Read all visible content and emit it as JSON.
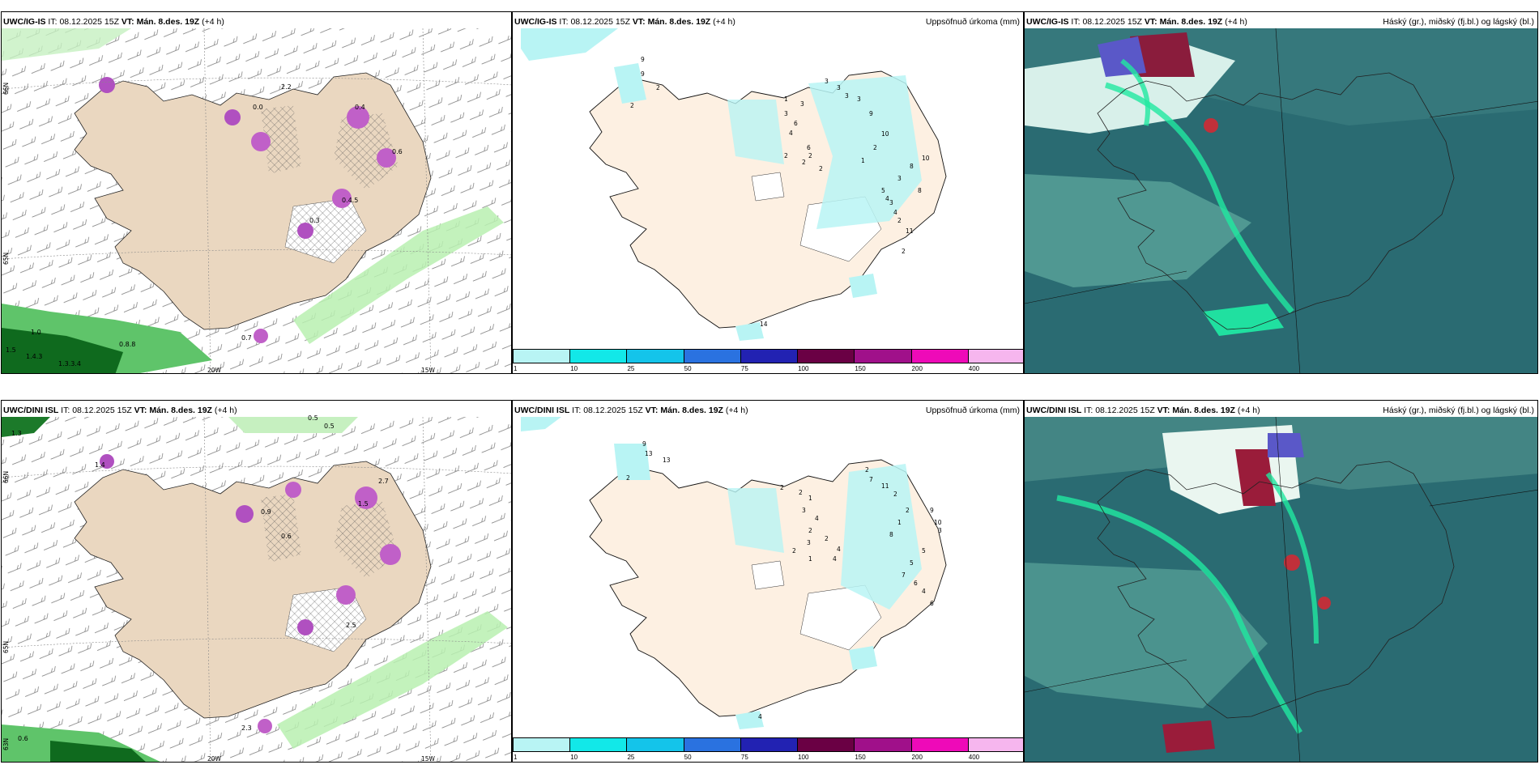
{
  "rows": [
    {
      "model": "UWC/IG-IS",
      "it_label": "IT:",
      "it_value": "08.12.2025 15Z",
      "vt_label": "VT:",
      "vt_value": "Mán. 8.des. 19Z",
      "lead": "(+4 h)",
      "precip_title": "Uppsöfnuð úrkoma (mm)",
      "cloud_title": "Háský (gr.), miðský (fj.bl.) og lágský (bl.)",
      "lat_labels": [
        "66N",
        "65N"
      ],
      "lon_labels": [
        "20W",
        "15W"
      ],
      "sea_values": [
        "1.0",
        "0.8.8",
        "1.5",
        "1.4.3",
        "1.3.3.4"
      ],
      "land_values": [
        "0.0",
        "2.2",
        "0.4",
        "0.6",
        "0.4.5",
        "0.3",
        "0.7"
      ],
      "precip_values": [
        "9",
        "9",
        "2",
        "2",
        "1",
        "3",
        "3",
        "6",
        "4",
        "6",
        "2",
        "2",
        "2",
        "2",
        "3",
        "3",
        "3",
        "3",
        "9",
        "10",
        "2",
        "1",
        "3",
        "8",
        "10",
        "5",
        "4",
        "3",
        "4",
        "2",
        "8",
        "11",
        "2",
        "14"
      ]
    },
    {
      "model": "UWC/DINI ISL",
      "it_label": "IT:",
      "it_value": "08.12.2025 15Z",
      "vt_label": "VT:",
      "vt_value": "Mán. 8.des. 19Z",
      "lead": "(+4 h)",
      "precip_title": "Uppsöfnuð úrkoma (mm)",
      "cloud_title": "Háský (gr.), miðský (fj.bl.) og lágský (bl.)",
      "lat_labels": [
        "66N",
        "65N",
        "63N"
      ],
      "lon_labels": [
        "20W",
        "15W"
      ],
      "sea_values": [
        "1.3",
        "0.5",
        "0.5",
        "0.6"
      ],
      "land_values": [
        "1.4",
        "2.7",
        "1.5",
        "0.9",
        "0.6",
        "2.5",
        "2.3"
      ],
      "precip_values": [
        "9",
        "13",
        "13",
        "2",
        "2",
        "2",
        "1",
        "3",
        "4",
        "2",
        "3",
        "2",
        "1",
        "2",
        "4",
        "4",
        "2",
        "7",
        "11",
        "2",
        "2",
        "1",
        "8",
        "9",
        "10",
        "3",
        "5",
        "5",
        "7",
        "6",
        "4",
        "6",
        "4"
      ]
    }
  ],
  "colorbar": {
    "ticks": [
      "1",
      "10",
      "25",
      "50",
      "75",
      "100",
      "150",
      "200",
      "400"
    ],
    "colors": [
      "#b8f4f4",
      "#12e8e8",
      "#14c4ea",
      "#2a72e0",
      "#2222b2",
      "#6a0044",
      "#a0108a",
      "#ee0ab8",
      "#f6b6ee"
    ]
  }
}
